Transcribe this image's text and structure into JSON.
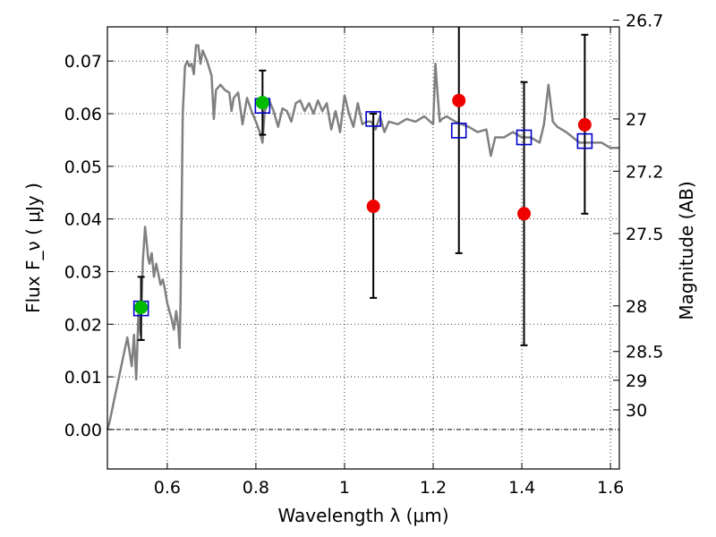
{
  "chart_data": {
    "type": "scatter",
    "title": "",
    "xlabel": "Wavelength  λ (μm)",
    "ylabel": "Flux  F_ν  ( μJy )",
    "y2label": "Magnitude (AB)",
    "xlim": [
      0.465,
      1.62
    ],
    "ylim": [
      -0.0075,
      0.0765
    ],
    "grid": true,
    "xticks": [
      {
        "value": 0.6,
        "label": "0.6"
      },
      {
        "value": 0.8,
        "label": "0.8"
      },
      {
        "value": 1.0,
        "label": "1"
      },
      {
        "value": 1.2,
        "label": "1.2"
      },
      {
        "value": 1.4,
        "label": "1.4"
      },
      {
        "value": 1.6,
        "label": "1.6"
      }
    ],
    "yticks": [
      {
        "value": 0.0,
        "label": "0.00"
      },
      {
        "value": 0.01,
        "label": "0.01"
      },
      {
        "value": 0.02,
        "label": "0.02"
      },
      {
        "value": 0.03,
        "label": "0.03"
      },
      {
        "value": 0.04,
        "label": "0.04"
      },
      {
        "value": 0.05,
        "label": "0.05"
      },
      {
        "value": 0.06,
        "label": "0.06"
      },
      {
        "value": 0.07,
        "label": "0.07"
      }
    ],
    "y2ticks": [
      {
        "value": 26.7,
        "label": "26.7"
      },
      {
        "value": 27.0,
        "label": "27"
      },
      {
        "value": 27.2,
        "label": "27.2"
      },
      {
        "value": 27.5,
        "label": "27.5"
      },
      {
        "value": 28.0,
        "label": "28"
      },
      {
        "value": 28.5,
        "label": "28.5"
      },
      {
        "value": 29.0,
        "label": "29"
      },
      {
        "value": 30.0,
        "label": "30"
      }
    ],
    "colors": {
      "template": "#808080",
      "model_box": "#0000cc",
      "obs_green": "#00bb00",
      "obs_red": "#ee0000",
      "errorbar": "#000000"
    },
    "template_spectrum": {
      "x": [
        0.465,
        0.47,
        0.48,
        0.49,
        0.5,
        0.51,
        0.52,
        0.525,
        0.53,
        0.535,
        0.54,
        0.545,
        0.55,
        0.553,
        0.557,
        0.56,
        0.565,
        0.57,
        0.575,
        0.58,
        0.585,
        0.59,
        0.595,
        0.6,
        0.605,
        0.61,
        0.615,
        0.62,
        0.625,
        0.628,
        0.63,
        0.635,
        0.64,
        0.645,
        0.65,
        0.655,
        0.66,
        0.665,
        0.67,
        0.675,
        0.68,
        0.69,
        0.7,
        0.705,
        0.71,
        0.72,
        0.73,
        0.74,
        0.745,
        0.75,
        0.76,
        0.77,
        0.78,
        0.79,
        0.8,
        0.81,
        0.815,
        0.82,
        0.83,
        0.84,
        0.85,
        0.86,
        0.87,
        0.88,
        0.89,
        0.9,
        0.91,
        0.92,
        0.93,
        0.94,
        0.95,
        0.96,
        0.97,
        0.98,
        0.99,
        1.0,
        1.01,
        1.02,
        1.03,
        1.04,
        1.05,
        1.06,
        1.07,
        1.08,
        1.09,
        1.1,
        1.12,
        1.14,
        1.16,
        1.18,
        1.2,
        1.205,
        1.21,
        1.215,
        1.22,
        1.23,
        1.25,
        1.28,
        1.3,
        1.32,
        1.33,
        1.34,
        1.36,
        1.38,
        1.4,
        1.42,
        1.44,
        1.45,
        1.46,
        1.47,
        1.48,
        1.5,
        1.53,
        1.56,
        1.58,
        1.6,
        1.62
      ],
      "y": [
        0.0,
        0.0015,
        0.0055,
        0.0095,
        0.0135,
        0.0175,
        0.012,
        0.018,
        0.0095,
        0.022,
        0.018,
        0.032,
        0.0385,
        0.036,
        0.0325,
        0.0315,
        0.0335,
        0.029,
        0.0315,
        0.0295,
        0.0275,
        0.0285,
        0.0265,
        0.024,
        0.0225,
        0.021,
        0.019,
        0.0225,
        0.0195,
        0.0155,
        0.024,
        0.06,
        0.069,
        0.07,
        0.069,
        0.0695,
        0.0675,
        0.073,
        0.073,
        0.0695,
        0.072,
        0.07,
        0.0672,
        0.059,
        0.0645,
        0.0655,
        0.0645,
        0.064,
        0.0605,
        0.063,
        0.064,
        0.058,
        0.063,
        0.0605,
        0.0585,
        0.0562,
        0.0545,
        0.0605,
        0.0625,
        0.0605,
        0.0575,
        0.061,
        0.0605,
        0.0585,
        0.062,
        0.0625,
        0.0605,
        0.062,
        0.06,
        0.0625,
        0.0605,
        0.062,
        0.057,
        0.0605,
        0.0565,
        0.0635,
        0.06,
        0.0575,
        0.062,
        0.058,
        0.0585,
        0.0585,
        0.057,
        0.0595,
        0.0565,
        0.0585,
        0.058,
        0.059,
        0.0585,
        0.0595,
        0.058,
        0.0695,
        0.0635,
        0.0585,
        0.059,
        0.0595,
        0.0585,
        0.0575,
        0.0565,
        0.057,
        0.052,
        0.0555,
        0.0555,
        0.0565,
        0.0555,
        0.0555,
        0.0545,
        0.058,
        0.0655,
        0.0585,
        0.0575,
        0.0565,
        0.0545,
        0.0545,
        0.0545,
        0.0535,
        0.0535
      ]
    },
    "model_points": [
      {
        "x": 0.541,
        "y": 0.023
      },
      {
        "x": 0.815,
        "y": 0.0615
      },
      {
        "x": 1.065,
        "y": 0.059
      },
      {
        "x": 1.258,
        "y": 0.0568
      },
      {
        "x": 1.405,
        "y": 0.0555
      },
      {
        "x": 1.542,
        "y": 0.0548
      }
    ],
    "observed_points": [
      {
        "x": 0.541,
        "y": 0.0232,
        "yerr_low": 0.0062,
        "yerr_high": 0.0058,
        "color": "green"
      },
      {
        "x": 0.815,
        "y": 0.0621,
        "yerr_low": 0.0061,
        "yerr_high": 0.0061,
        "color": "green"
      },
      {
        "x": 1.065,
        "y": 0.0424,
        "yerr_low": 0.0174,
        "yerr_high": 0.0176,
        "color": "red"
      },
      {
        "x": 1.258,
        "y": 0.0625,
        "yerr_low": 0.029,
        "yerr_high": 0.0145,
        "color": "red"
      },
      {
        "x": 1.405,
        "y": 0.041,
        "yerr_low": 0.025,
        "yerr_high": 0.025,
        "color": "red"
      },
      {
        "x": 1.542,
        "y": 0.0579,
        "yerr_low": 0.0169,
        "yerr_high": 0.0171,
        "color": "red"
      }
    ]
  }
}
